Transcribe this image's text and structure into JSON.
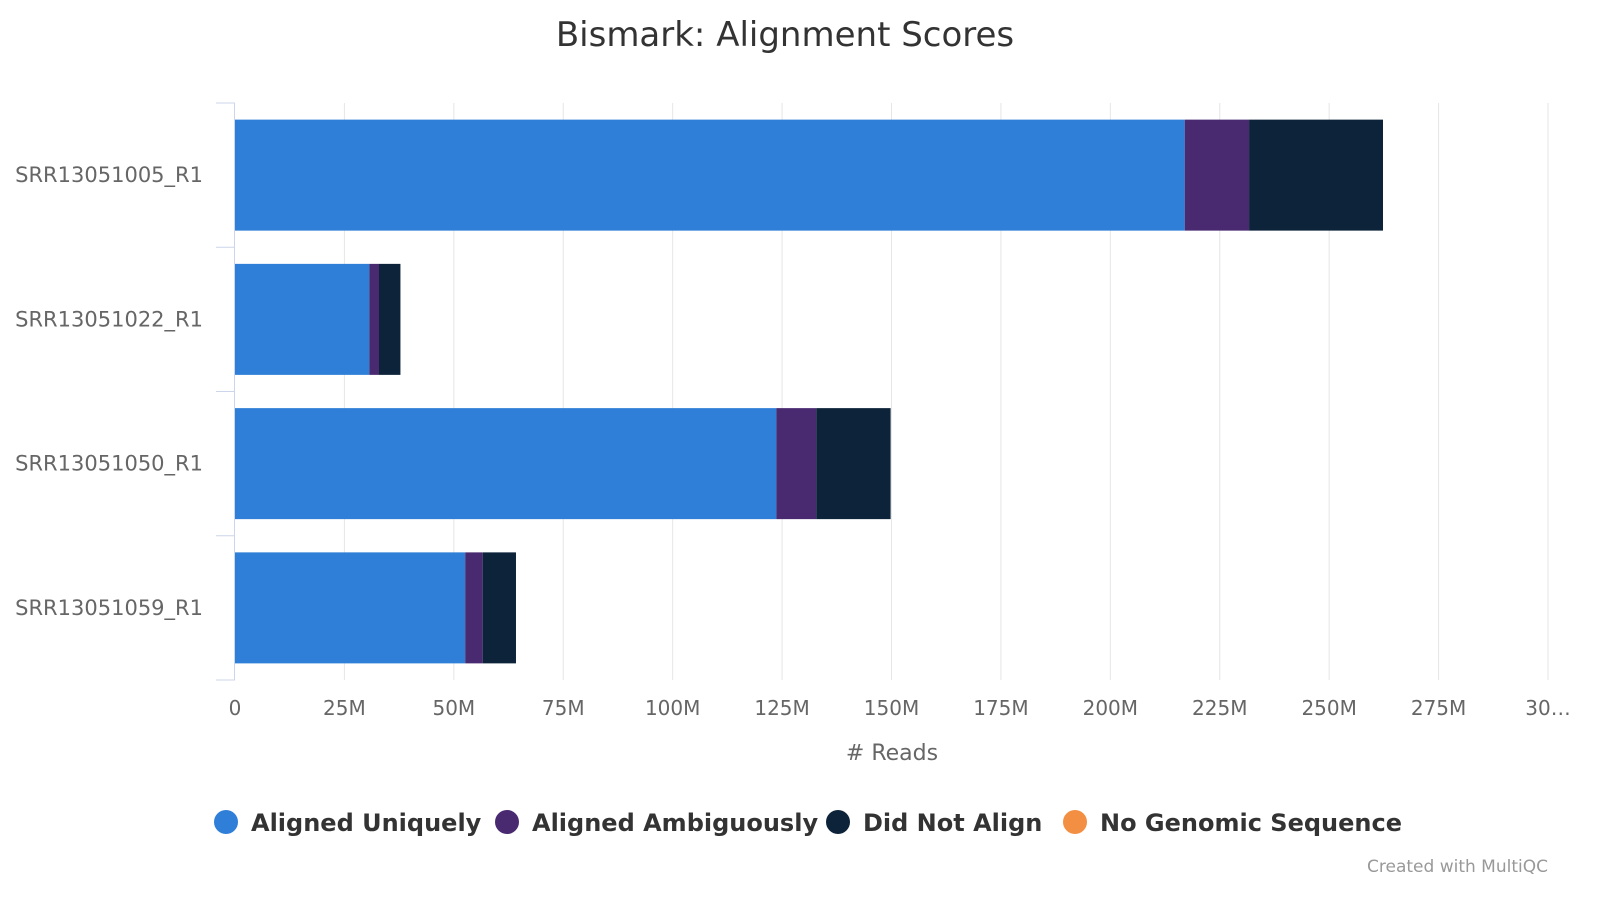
{
  "chart_data": {
    "type": "bar",
    "orientation": "horizontal",
    "stacked": true,
    "title": "Bismark: Alignment Scores",
    "xlabel": "# Reads",
    "ylabel": "",
    "xlim": [
      0,
      300000000
    ],
    "x_ticks": [
      "0",
      "25M",
      "50M",
      "75M",
      "100M",
      "125M",
      "150M",
      "175M",
      "200M",
      "225M",
      "250M",
      "275M",
      "30…"
    ],
    "x_tick_values": [
      0,
      25000000,
      50000000,
      75000000,
      100000000,
      125000000,
      150000000,
      175000000,
      200000000,
      225000000,
      250000000,
      275000000,
      300000000
    ],
    "grid": true,
    "legend_position": "bottom",
    "categories": [
      "SRR13051005_R1",
      "SRR13051022_R1",
      "SRR13051050_R1",
      "SRR13051059_R1"
    ],
    "series": [
      {
        "name": "Aligned Uniquely",
        "color": "#2f7ed8",
        "values": [
          217000000,
          30700000,
          123700000,
          52600000
        ]
      },
      {
        "name": "Aligned Ambiguously",
        "color": "#492970",
        "values": [
          14700000,
          2200000,
          9100000,
          4000000
        ]
      },
      {
        "name": "Did Not Align",
        "color": "#0d233a",
        "values": [
          30600000,
          4900000,
          17000000,
          7600000
        ]
      },
      {
        "name": "No Genomic Sequence",
        "color": "#f28f43",
        "values": [
          0,
          0,
          0,
          0
        ]
      }
    ]
  },
  "credit": "Created with MultiQC"
}
